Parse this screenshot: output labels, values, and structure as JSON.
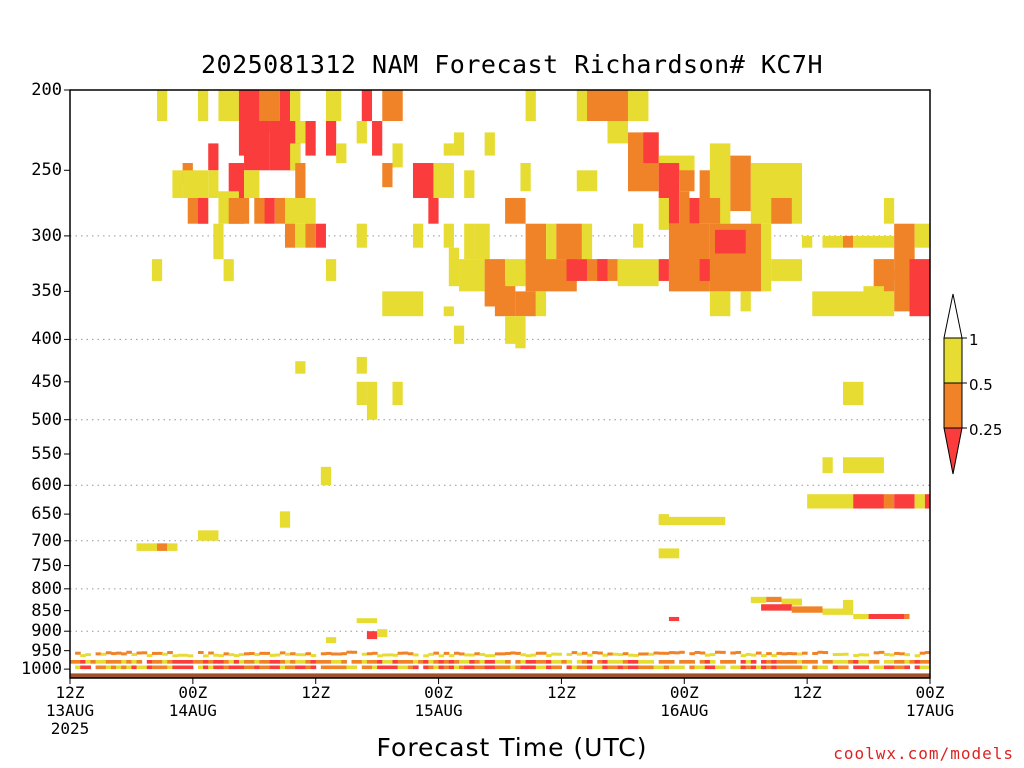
{
  "title": "2025081312 NAM Forecast Richardson# KC7H",
  "credit": "coolwx.com/models",
  "chart_data": {
    "type": "heatmap",
    "title": "2025081312 NAM Forecast Richardson# KC7H",
    "xlabel": "Forecast Time (UTC)",
    "ylabel": "",
    "x_unit": "hours from 2025-08-13 12Z",
    "xlim": [
      0,
      84
    ],
    "ylim": [
      1025,
      200
    ],
    "y_ticks": [
      200,
      250,
      300,
      350,
      400,
      450,
      500,
      550,
      600,
      650,
      700,
      750,
      800,
      850,
      900,
      950,
      1000
    ],
    "gridlines_at": [
      300,
      400,
      500,
      600,
      700,
      800,
      900
    ],
    "x_ticks": [
      {
        "h": 0,
        "time": "12Z",
        "date": "13AUG",
        "year": "2025"
      },
      {
        "h": 12,
        "time": "00Z",
        "date": "14AUG",
        "year": ""
      },
      {
        "h": 24,
        "time": "12Z",
        "date": "",
        "year": ""
      },
      {
        "h": 36,
        "time": "00Z",
        "date": "15AUG",
        "year": ""
      },
      {
        "h": 48,
        "time": "12Z",
        "date": "",
        "year": ""
      },
      {
        "h": 60,
        "time": "00Z",
        "date": "16AUG",
        "year": ""
      },
      {
        "h": 72,
        "time": "12Z",
        "date": "",
        "year": ""
      },
      {
        "h": 84,
        "time": "00Z",
        "date": "17AUG",
        "year": ""
      }
    ],
    "colorbar": {
      "levels": [
        "1",
        "0.5",
        "0.25"
      ],
      "colors": {
        "gt1": "#ffffff",
        "0.5-1": "#e6dc32",
        "0.25-0.5": "#f08228",
        "lt0.25": "#fa3c3c"
      }
    },
    "ground_color": "#a0522d",
    "cells": [
      {
        "h0": 8.5,
        "h1": 9.5,
        "p0": 200,
        "p1": 218,
        "c": "y"
      },
      {
        "h0": 12.5,
        "h1": 13.5,
        "p0": 200,
        "p1": 218,
        "c": "y"
      },
      {
        "h0": 14.5,
        "h1": 16.5,
        "p0": 200,
        "p1": 218,
        "c": "y"
      },
      {
        "h0": 16.5,
        "h1": 18.5,
        "p0": 200,
        "p1": 240,
        "c": "r"
      },
      {
        "h0": 18.5,
        "h1": 20.5,
        "p0": 200,
        "p1": 225,
        "c": "o"
      },
      {
        "h0": 20.5,
        "h1": 21.5,
        "p0": 200,
        "p1": 218,
        "c": "r"
      },
      {
        "h0": 21.5,
        "h1": 22.5,
        "p0": 200,
        "p1": 218,
        "c": "y"
      },
      {
        "h0": 25,
        "h1": 26.5,
        "p0": 200,
        "p1": 218,
        "c": "y"
      },
      {
        "h0": 28.5,
        "h1": 29.5,
        "p0": 200,
        "p1": 218,
        "c": "r"
      },
      {
        "h0": 30.5,
        "h1": 32.5,
        "p0": 200,
        "p1": 218,
        "c": "o"
      },
      {
        "h0": 44.5,
        "h1": 45.5,
        "p0": 200,
        "p1": 218,
        "c": "y"
      },
      {
        "h0": 49.5,
        "h1": 50.5,
        "p0": 200,
        "p1": 218,
        "c": "y"
      },
      {
        "h0": 50.5,
        "h1": 54.5,
        "p0": 200,
        "p1": 218,
        "c": "o"
      },
      {
        "h0": 54.5,
        "h1": 56.5,
        "p0": 200,
        "p1": 218,
        "c": "y"
      },
      {
        "h0": 17,
        "h1": 19.5,
        "p0": 218,
        "p1": 250,
        "c": "r"
      },
      {
        "h0": 19.5,
        "h1": 22.5,
        "p0": 218,
        "p1": 250,
        "c": "r"
      },
      {
        "h0": 23,
        "h1": 24,
        "p0": 218,
        "p1": 240,
        "c": "r"
      },
      {
        "h0": 25,
        "h1": 26,
        "p0": 218,
        "p1": 240,
        "c": "r"
      },
      {
        "h0": 28,
        "h1": 29,
        "p0": 218,
        "p1": 232,
        "c": "y"
      },
      {
        "h0": 29.5,
        "h1": 30.5,
        "p0": 218,
        "p1": 240,
        "c": "r"
      },
      {
        "h0": 22,
        "h1": 23,
        "p0": 218,
        "p1": 232,
        "c": "y"
      },
      {
        "h0": 52.5,
        "h1": 54.5,
        "p0": 218,
        "p1": 232,
        "c": "y"
      },
      {
        "h0": 54.5,
        "h1": 57.5,
        "p0": 225,
        "p1": 265,
        "c": "o"
      },
      {
        "h0": 56,
        "h1": 57.5,
        "p0": 225,
        "p1": 245,
        "c": "r"
      },
      {
        "h0": 37.5,
        "h1": 38.5,
        "p0": 225,
        "p1": 240,
        "c": "y"
      },
      {
        "h0": 40.5,
        "h1": 41.5,
        "p0": 225,
        "p1": 240,
        "c": "y"
      },
      {
        "h0": 13.5,
        "h1": 14.5,
        "p0": 232,
        "p1": 250,
        "c": "r"
      },
      {
        "h0": 21.5,
        "h1": 22.5,
        "p0": 232,
        "p1": 250,
        "c": "y"
      },
      {
        "h0": 26,
        "h1": 27,
        "p0": 232,
        "p1": 245,
        "c": "y"
      },
      {
        "h0": 31.5,
        "h1": 32.5,
        "p0": 232,
        "p1": 248,
        "c": "y"
      },
      {
        "h0": 36.5,
        "h1": 37.5,
        "p0": 232,
        "p1": 240,
        "c": "y"
      },
      {
        "h0": 57.5,
        "h1": 61,
        "p0": 240,
        "p1": 255,
        "c": "y"
      },
      {
        "h0": 62.5,
        "h1": 64.5,
        "p0": 232,
        "p1": 290,
        "c": "y"
      },
      {
        "h0": 64.5,
        "h1": 66.5,
        "p0": 240,
        "p1": 280,
        "c": "o"
      },
      {
        "h0": 66.5,
        "h1": 71.5,
        "p0": 245,
        "p1": 290,
        "c": "y"
      },
      {
        "h0": 11,
        "h1": 12,
        "p0": 245,
        "p1": 260,
        "c": "o"
      },
      {
        "h0": 10,
        "h1": 11,
        "p0": 250,
        "p1": 270,
        "c": "y"
      },
      {
        "h0": 11,
        "h1": 13.5,
        "p0": 250,
        "p1": 270,
        "c": "y"
      },
      {
        "h0": 13.5,
        "h1": 14.5,
        "p0": 250,
        "p1": 270,
        "c": "y"
      },
      {
        "h0": 15.5,
        "h1": 17,
        "p0": 245,
        "p1": 290,
        "c": "r"
      },
      {
        "h0": 17,
        "h1": 18.5,
        "p0": 250,
        "p1": 270,
        "c": "y"
      },
      {
        "h0": 22,
        "h1": 23,
        "p0": 245,
        "p1": 270,
        "c": "o"
      },
      {
        "h0": 30.5,
        "h1": 31.5,
        "p0": 245,
        "p1": 262,
        "c": "o"
      },
      {
        "h0": 33.5,
        "h1": 35.5,
        "p0": 245,
        "p1": 270,
        "c": "r"
      },
      {
        "h0": 35.5,
        "h1": 37.5,
        "p0": 245,
        "p1": 270,
        "c": "y"
      },
      {
        "h0": 38.5,
        "h1": 39.5,
        "p0": 250,
        "p1": 270,
        "c": "y"
      },
      {
        "h0": 44,
        "h1": 45,
        "p0": 245,
        "p1": 265,
        "c": "y"
      },
      {
        "h0": 49.5,
        "h1": 51.5,
        "p0": 250,
        "p1": 265,
        "c": "y"
      },
      {
        "h0": 57.5,
        "h1": 59.5,
        "p0": 245,
        "p1": 270,
        "c": "r"
      },
      {
        "h0": 59.5,
        "h1": 61,
        "p0": 250,
        "p1": 265,
        "c": "o"
      },
      {
        "h0": 61.5,
        "h1": 62.5,
        "p0": 250,
        "p1": 270,
        "c": "o"
      },
      {
        "h0": 11.5,
        "h1": 13.5,
        "p0": 270,
        "p1": 290,
        "c": "o"
      },
      {
        "h0": 12.5,
        "h1": 13.5,
        "p0": 270,
        "p1": 290,
        "c": "r"
      },
      {
        "h0": 14.5,
        "h1": 16.5,
        "p0": 265,
        "p1": 290,
        "c": "y"
      },
      {
        "h0": 15.5,
        "h1": 17.5,
        "p0": 270,
        "p1": 290,
        "c": "o"
      },
      {
        "h0": 18,
        "h1": 19,
        "p0": 270,
        "p1": 290,
        "c": "o"
      },
      {
        "h0": 19,
        "h1": 20,
        "p0": 270,
        "p1": 290,
        "c": "r"
      },
      {
        "h0": 20,
        "h1": 21,
        "p0": 270,
        "p1": 290,
        "c": "o"
      },
      {
        "h0": 21,
        "h1": 24,
        "p0": 270,
        "p1": 290,
        "c": "y"
      },
      {
        "h0": 35,
        "h1": 36,
        "p0": 270,
        "p1": 290,
        "c": "r"
      },
      {
        "h0": 42.5,
        "h1": 44.5,
        "p0": 270,
        "p1": 290,
        "c": "o"
      },
      {
        "h0": 57.5,
        "h1": 58.5,
        "p0": 270,
        "p1": 295,
        "c": "y"
      },
      {
        "h0": 58.5,
        "h1": 59.5,
        "p0": 270,
        "p1": 290,
        "c": "r"
      },
      {
        "h0": 59.5,
        "h1": 60.5,
        "p0": 265,
        "p1": 295,
        "c": "o"
      },
      {
        "h0": 60.5,
        "h1": 61.5,
        "p0": 270,
        "p1": 290,
        "c": "r"
      },
      {
        "h0": 61.5,
        "h1": 63.5,
        "p0": 270,
        "p1": 290,
        "c": "o"
      },
      {
        "h0": 68.5,
        "h1": 70.5,
        "p0": 270,
        "p1": 290,
        "c": "o"
      },
      {
        "h0": 79.5,
        "h1": 80.5,
        "p0": 270,
        "p1": 290,
        "c": "y"
      },
      {
        "h0": 14,
        "h1": 15,
        "p0": 290,
        "p1": 320,
        "c": "y"
      },
      {
        "h0": 21,
        "h1": 22,
        "p0": 290,
        "p1": 310,
        "c": "o"
      },
      {
        "h0": 22,
        "h1": 23,
        "p0": 290,
        "p1": 310,
        "c": "y"
      },
      {
        "h0": 24,
        "h1": 25,
        "p0": 290,
        "p1": 310,
        "c": "r"
      },
      {
        "h0": 23,
        "h1": 24,
        "p0": 290,
        "p1": 310,
        "c": "o"
      },
      {
        "h0": 28,
        "h1": 29,
        "p0": 290,
        "p1": 310,
        "c": "y"
      },
      {
        "h0": 33.5,
        "h1": 34.5,
        "p0": 290,
        "p1": 310,
        "c": "y"
      },
      {
        "h0": 36.5,
        "h1": 37.5,
        "p0": 290,
        "p1": 310,
        "c": "y"
      },
      {
        "h0": 38.5,
        "h1": 39.5,
        "p0": 290,
        "p1": 320,
        "c": "y"
      },
      {
        "h0": 39.5,
        "h1": 41,
        "p0": 290,
        "p1": 320,
        "c": "y"
      },
      {
        "h0": 44.5,
        "h1": 46.5,
        "p0": 290,
        "p1": 325,
        "c": "o"
      },
      {
        "h0": 46.5,
        "h1": 47.5,
        "p0": 290,
        "p1": 320,
        "c": "y"
      },
      {
        "h0": 47.5,
        "h1": 50,
        "p0": 290,
        "p1": 320,
        "c": "o"
      },
      {
        "h0": 50,
        "h1": 51,
        "p0": 290,
        "p1": 320,
        "c": "y"
      },
      {
        "h0": 55,
        "h1": 56,
        "p0": 290,
        "p1": 310,
        "c": "y"
      },
      {
        "h0": 58.5,
        "h1": 62.5,
        "p0": 290,
        "p1": 350,
        "c": "o"
      },
      {
        "h0": 62.5,
        "h1": 67.5,
        "p0": 290,
        "p1": 350,
        "c": "o"
      },
      {
        "h0": 63,
        "h1": 66,
        "p0": 295,
        "p1": 315,
        "c": "r"
      },
      {
        "h0": 67.5,
        "h1": 68.5,
        "p0": 290,
        "p1": 350,
        "c": "y"
      },
      {
        "h0": 71.5,
        "h1": 72.5,
        "p0": 300,
        "p1": 310,
        "c": "y"
      },
      {
        "h0": 73.5,
        "h1": 75.5,
        "p0": 300,
        "p1": 310,
        "c": "y"
      },
      {
        "h0": 75.5,
        "h1": 76.5,
        "p0": 300,
        "p1": 310,
        "c": "o"
      },
      {
        "h0": 76.5,
        "h1": 80.5,
        "p0": 300,
        "p1": 310,
        "c": "y"
      },
      {
        "h0": 80.5,
        "h1": 82.5,
        "p0": 290,
        "p1": 340,
        "c": "o"
      },
      {
        "h0": 82.5,
        "h1": 84,
        "p0": 290,
        "p1": 310,
        "c": "y"
      },
      {
        "h0": 8,
        "h1": 9,
        "p0": 320,
        "p1": 340,
        "c": "y"
      },
      {
        "h0": 15,
        "h1": 16,
        "p0": 320,
        "p1": 340,
        "c": "y"
      },
      {
        "h0": 25,
        "h1": 26,
        "p0": 320,
        "p1": 340,
        "c": "y"
      },
      {
        "h0": 37,
        "h1": 38,
        "p0": 310,
        "p1": 345,
        "c": "y"
      },
      {
        "h0": 38,
        "h1": 40.5,
        "p0": 320,
        "p1": 350,
        "c": "y"
      },
      {
        "h0": 40.5,
        "h1": 42.5,
        "p0": 320,
        "p1": 365,
        "c": "o"
      },
      {
        "h0": 41.5,
        "h1": 43.5,
        "p0": 340,
        "p1": 375,
        "c": "o"
      },
      {
        "h0": 42.5,
        "h1": 44.5,
        "p0": 320,
        "p1": 345,
        "c": "y"
      },
      {
        "h0": 44.5,
        "h1": 49.5,
        "p0": 320,
        "p1": 350,
        "c": "o"
      },
      {
        "h0": 48.5,
        "h1": 50.5,
        "p0": 320,
        "p1": 340,
        "c": "r"
      },
      {
        "h0": 50.5,
        "h1": 53.5,
        "p0": 320,
        "p1": 340,
        "c": "o"
      },
      {
        "h0": 51.5,
        "h1": 52.5,
        "p0": 320,
        "p1": 340,
        "c": "r"
      },
      {
        "h0": 53.5,
        "h1": 57.5,
        "p0": 320,
        "p1": 345,
        "c": "y"
      },
      {
        "h0": 57.5,
        "h1": 58.5,
        "p0": 320,
        "p1": 340,
        "c": "r"
      },
      {
        "h0": 61.5,
        "h1": 62.5,
        "p0": 320,
        "p1": 340,
        "c": "r"
      },
      {
        "h0": 68.5,
        "h1": 71.5,
        "p0": 320,
        "p1": 340,
        "c": "y"
      },
      {
        "h0": 78.5,
        "h1": 80.5,
        "p0": 320,
        "p1": 350,
        "c": "o"
      },
      {
        "h0": 80.5,
        "h1": 82,
        "p0": 330,
        "p1": 370,
        "c": "o"
      },
      {
        "h0": 82,
        "h1": 84,
        "p0": 320,
        "p1": 375,
        "c": "r"
      },
      {
        "h0": 30.5,
        "h1": 34.5,
        "p0": 350,
        "p1": 375,
        "c": "y"
      },
      {
        "h0": 36.5,
        "h1": 37.5,
        "p0": 365,
        "p1": 375,
        "c": "y"
      },
      {
        "h0": 43.5,
        "h1": 45.5,
        "p0": 350,
        "p1": 375,
        "c": "o"
      },
      {
        "h0": 45.5,
        "h1": 46.5,
        "p0": 350,
        "p1": 375,
        "c": "y"
      },
      {
        "h0": 62.5,
        "h1": 64.5,
        "p0": 350,
        "p1": 375,
        "c": "y"
      },
      {
        "h0": 65.5,
        "h1": 66.5,
        "p0": 350,
        "p1": 370,
        "c": "y"
      },
      {
        "h0": 72.5,
        "h1": 80.5,
        "p0": 350,
        "p1": 375,
        "c": "y"
      },
      {
        "h0": 77.5,
        "h1": 79.5,
        "p0": 345,
        "p1": 365,
        "c": "y"
      },
      {
        "h0": 37.5,
        "h1": 38.5,
        "p0": 385,
        "p1": 405,
        "c": "y"
      },
      {
        "h0": 42.5,
        "h1": 44.5,
        "p0": 375,
        "p1": 405,
        "c": "y"
      },
      {
        "h0": 43.5,
        "h1": 44.5,
        "p0": 400,
        "p1": 410,
        "c": "y"
      },
      {
        "h0": 22,
        "h1": 23,
        "p0": 425,
        "p1": 440,
        "c": "y"
      },
      {
        "h0": 28,
        "h1": 29,
        "p0": 420,
        "p1": 440,
        "c": "y"
      },
      {
        "h0": 28,
        "h1": 29,
        "p0": 450,
        "p1": 480,
        "c": "y"
      },
      {
        "h0": 29,
        "h1": 30,
        "p0": 450,
        "p1": 500,
        "c": "y"
      },
      {
        "h0": 31.5,
        "h1": 32.5,
        "p0": 450,
        "p1": 480,
        "c": "y"
      },
      {
        "h0": 75.5,
        "h1": 77.5,
        "p0": 450,
        "p1": 480,
        "c": "y"
      },
      {
        "h0": 24.5,
        "h1": 25.5,
        "p0": 570,
        "p1": 600,
        "c": "y"
      },
      {
        "h0": 73.5,
        "h1": 74.5,
        "p0": 555,
        "p1": 580,
        "c": "y"
      },
      {
        "h0": 75.5,
        "h1": 79.5,
        "p0": 555,
        "p1": 580,
        "c": "y"
      },
      {
        "h0": 72,
        "h1": 76.5,
        "p0": 615,
        "p1": 640,
        "c": "y"
      },
      {
        "h0": 76.5,
        "h1": 79.5,
        "p0": 615,
        "p1": 640,
        "c": "r"
      },
      {
        "h0": 79.5,
        "h1": 80.5,
        "p0": 615,
        "p1": 640,
        "c": "o"
      },
      {
        "h0": 80.5,
        "h1": 82.5,
        "p0": 615,
        "p1": 640,
        "c": "r"
      },
      {
        "h0": 82.5,
        "h1": 83.5,
        "p0": 615,
        "p1": 640,
        "c": "y"
      },
      {
        "h0": 83.5,
        "h1": 84,
        "p0": 615,
        "p1": 640,
        "c": "r"
      },
      {
        "h0": 20.5,
        "h1": 21.5,
        "p0": 645,
        "p1": 675,
        "c": "y"
      },
      {
        "h0": 57.5,
        "h1": 64,
        "p0": 655,
        "p1": 670,
        "c": "y"
      },
      {
        "h0": 57.5,
        "h1": 58.5,
        "p0": 650,
        "p1": 665,
        "c": "y"
      },
      {
        "h0": 12.5,
        "h1": 14.5,
        "p0": 680,
        "p1": 700,
        "c": "y"
      },
      {
        "h0": 6.5,
        "h1": 8.5,
        "p0": 705,
        "p1": 720,
        "c": "y"
      },
      {
        "h0": 8.5,
        "h1": 9.5,
        "p0": 705,
        "p1": 720,
        "c": "o"
      },
      {
        "h0": 9.5,
        "h1": 10.5,
        "p0": 705,
        "p1": 720,
        "c": "y"
      },
      {
        "h0": 57.5,
        "h1": 59.5,
        "p0": 715,
        "p1": 735,
        "c": "y"
      },
      {
        "h0": 66.5,
        "h1": 68,
        "p0": 818,
        "p1": 832,
        "c": "y"
      },
      {
        "h0": 68,
        "h1": 69.5,
        "p0": 818,
        "p1": 830,
        "c": "o"
      },
      {
        "h0": 69.5,
        "h1": 71.5,
        "p0": 822,
        "p1": 838,
        "c": "y"
      },
      {
        "h0": 67.5,
        "h1": 70.5,
        "p0": 835,
        "p1": 850,
        "c": "r"
      },
      {
        "h0": 70.5,
        "h1": 73.5,
        "p0": 840,
        "p1": 855,
        "c": "o"
      },
      {
        "h0": 73.5,
        "h1": 76.5,
        "p0": 845,
        "p1": 860,
        "c": "y"
      },
      {
        "h0": 75.5,
        "h1": 76.5,
        "p0": 825,
        "p1": 845,
        "c": "y"
      },
      {
        "h0": 76.5,
        "h1": 78,
        "p0": 858,
        "p1": 870,
        "c": "y"
      },
      {
        "h0": 78,
        "h1": 81.5,
        "p0": 858,
        "p1": 870,
        "c": "r"
      },
      {
        "h0": 81.5,
        "h1": 82,
        "p0": 858,
        "p1": 870,
        "c": "o"
      },
      {
        "h0": 28,
        "h1": 30,
        "p0": 868,
        "p1": 880,
        "c": "y"
      },
      {
        "h0": 29,
        "h1": 30,
        "p0": 900,
        "p1": 920,
        "c": "r"
      },
      {
        "h0": 30,
        "h1": 31,
        "p0": 895,
        "p1": 915,
        "c": "y"
      },
      {
        "h0": 25,
        "h1": 26,
        "p0": 915,
        "p1": 930,
        "c": "y"
      },
      {
        "h0": 58.5,
        "h1": 59.5,
        "p0": 865,
        "p1": 875,
        "c": "r"
      }
    ]
  }
}
